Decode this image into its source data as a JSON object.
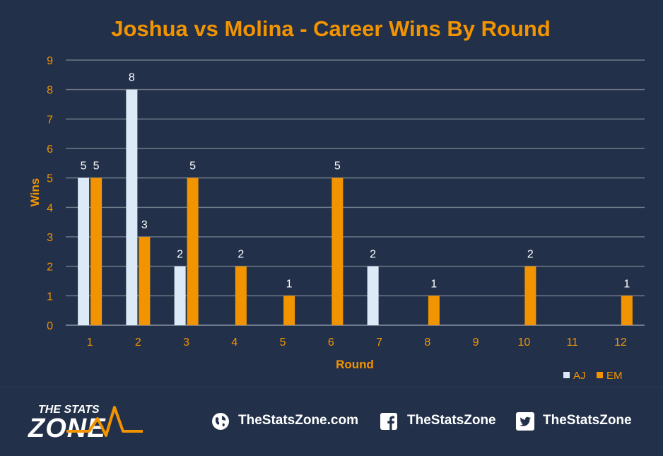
{
  "colors": {
    "background": "#223049",
    "accent": "#f29400",
    "aj": "#dce9f6",
    "em": "#f29400",
    "grid": "#6f7889",
    "text": "#ffffff"
  },
  "chart_data": {
    "type": "bar",
    "title": "Joshua vs Molina - Career Wins By Round",
    "xlabel": "Round",
    "ylabel": "Wins",
    "ylim": [
      0,
      9
    ],
    "yticks": [
      "0",
      "1",
      "2",
      "3",
      "4",
      "5",
      "6",
      "7",
      "8",
      "9"
    ],
    "categories": [
      "1",
      "2",
      "3",
      "4",
      "5",
      "6",
      "7",
      "8",
      "9",
      "10",
      "11",
      "12"
    ],
    "series": [
      {
        "name": "AJ",
        "values": [
          5,
          8,
          2,
          0,
          0,
          0,
          2,
          0,
          0,
          0,
          0,
          0
        ]
      },
      {
        "name": "EM",
        "values": [
          5,
          3,
          5,
          2,
          1,
          5,
          0,
          1,
          0,
          2,
          0,
          1
        ]
      }
    ],
    "grid": true,
    "legend_position": "bottom-right"
  },
  "footer": {
    "logo_line1": "THE STATS",
    "logo_line2": "ZONE",
    "website": "TheStatsZone.com",
    "facebook": "TheStatsZone",
    "twitter": "TheStatsZone",
    "icons": [
      "globe-icon",
      "facebook-icon",
      "twitter-icon"
    ]
  }
}
